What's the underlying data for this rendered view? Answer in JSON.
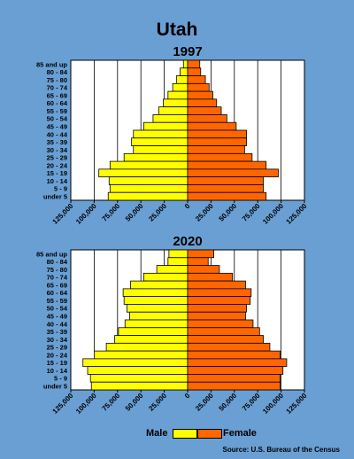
{
  "page": {
    "title": "Utah",
    "source": "Source: U.S. Bureau of the Census"
  },
  "legend": {
    "male_label": "Male",
    "female_label": "Female",
    "male_color": "#ffff00",
    "female_color": "#ff6600"
  },
  "chart_data": [
    {
      "type": "bar",
      "orientation": "horizontal-pyramid",
      "title": "1997",
      "categories": [
        "85 and up",
        "80 - 84",
        "75 - 80",
        "70 - 74",
        "65 - 69",
        "60 - 64",
        "55 - 59",
        "50 - 54",
        "45 - 49",
        "40 - 44",
        "35 - 39",
        "30 - 34",
        "25 - 29",
        "20 - 24",
        "15 - 19",
        "10 - 14",
        "5 - 9",
        "under 5"
      ],
      "series": [
        {
          "name": "Male",
          "color": "#ffff00",
          "values": [
            4500,
            8000,
            12000,
            16000,
            21000,
            26000,
            31000,
            37000,
            47000,
            58000,
            60000,
            58000,
            68000,
            83000,
            95000,
            84000,
            83000,
            85000
          ]
        },
        {
          "name": "Female",
          "color": "#ff6600",
          "values": [
            13000,
            14000,
            19000,
            23000,
            27000,
            31000,
            36000,
            42000,
            52000,
            63000,
            63000,
            61000,
            69000,
            84000,
            97000,
            81000,
            81000,
            84000
          ]
        }
      ],
      "xticks": [
        "125,000",
        "100,000",
        "75,000",
        "50,000",
        "25,000",
        "0",
        "25,000",
        "50,000",
        "75,000",
        "100,000",
        "125,000"
      ],
      "xlim": [
        -125000,
        125000
      ]
    },
    {
      "type": "bar",
      "orientation": "horizontal-pyramid",
      "title": "2020",
      "categories": [
        "85 and up",
        "80 - 84",
        "75 - 80",
        "70 - 74",
        "65 - 69",
        "60 - 64",
        "55 - 59",
        "50 - 54",
        "45 - 49",
        "40 - 44",
        "35 - 39",
        "30 - 34",
        "25 - 29",
        "20 - 24",
        "15 - 19",
        "10 - 14",
        "5 - 9",
        "under 5"
      ],
      "series": [
        {
          "name": "Male",
          "color": "#ffff00",
          "values": [
            20000,
            21000,
            33000,
            47000,
            61000,
            69000,
            68000,
            65000,
            62000,
            67000,
            74000,
            78000,
            87000,
            100000,
            112000,
            107000,
            104000,
            103000
          ]
        },
        {
          "name": "Female",
          "color": "#ff6600",
          "values": [
            28000,
            22000,
            34000,
            48000,
            62000,
            68000,
            67000,
            63000,
            62000,
            70000,
            77000,
            81000,
            88000,
            99000,
            106000,
            102000,
            99000,
            99000
          ]
        }
      ],
      "xticks": [
        "125,000",
        "100,000",
        "75,000",
        "50,000",
        "25,000",
        "0",
        "25,000",
        "50,000",
        "75,000",
        "100,000",
        "125,000"
      ],
      "xlim": [
        -125000,
        125000
      ]
    }
  ]
}
